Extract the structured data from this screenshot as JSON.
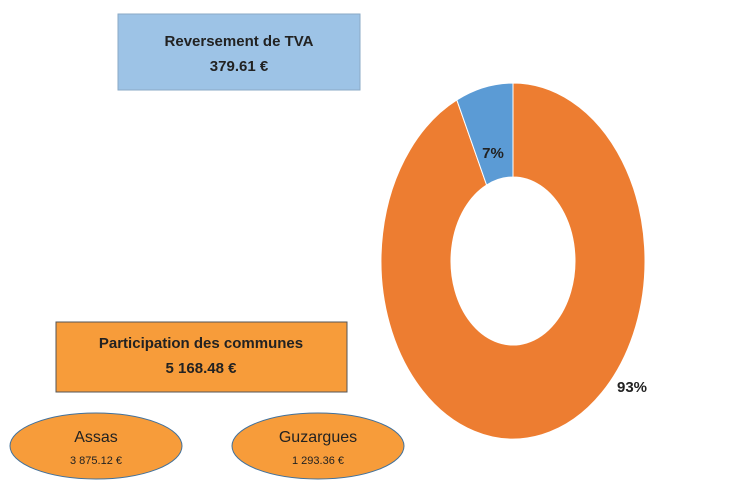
{
  "chart_data": {
    "type": "donut",
    "values": [
      93,
      7
    ],
    "value_labels": [
      "93%",
      "7%"
    ],
    "colors": [
      "#ED7D31",
      "#5B9BD5"
    ],
    "annotations": [
      {
        "text": "Reversement de TVA",
        "amount": "379.61 €"
      },
      {
        "text": "Participation des communes",
        "amount": "5 168.48 €"
      }
    ],
    "communes": [
      {
        "name": "Assas",
        "amount": "3 875.12 €"
      },
      {
        "name": "Guzargues",
        "amount": "1 293.36 €"
      }
    ]
  }
}
